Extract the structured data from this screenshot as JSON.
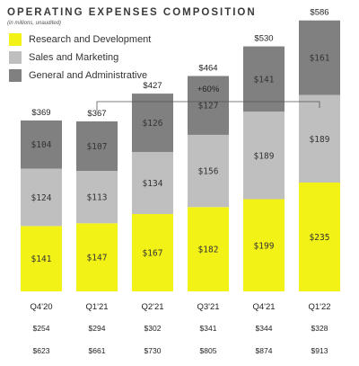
{
  "header": {
    "title": "OPERATING EXPENSES COMPOSITION",
    "subtitle": "(in millions, unaudited)"
  },
  "colors": {
    "rd": "#f2f216",
    "sm": "#bfbfbf",
    "ga": "#808080"
  },
  "growth_label": "+60%",
  "chart_data": {
    "type": "bar",
    "stacked": true,
    "title": "OPERATING EXPENSES COMPOSITION",
    "subtitle": "(in millions, unaudited)",
    "categories": [
      "Q4'20",
      "Q1'21",
      "Q2'21",
      "Q3'21",
      "Q4'21",
      "Q1'22"
    ],
    "series": [
      {
        "name": "Research and Development",
        "values": [
          141,
          147,
          167,
          182,
          199,
          235
        ]
      },
      {
        "name": "Sales and Marketing",
        "values": [
          124,
          113,
          134,
          156,
          189,
          189
        ]
      },
      {
        "name": "General and Administrative",
        "values": [
          104,
          107,
          126,
          127,
          141,
          161
        ]
      }
    ],
    "totals": [
      "$369",
      "$367",
      "$427",
      "$464",
      "$530",
      "$586"
    ],
    "value_labels": {
      "rd": [
        "$141",
        "$147",
        "$167",
        "$182",
        "$199",
        "$235"
      ],
      "sm": [
        "$124",
        "$113",
        "$134",
        "$156",
        "$189",
        "$189"
      ],
      "ga": [
        "$104",
        "$107",
        "$126",
        "$127",
        "$141",
        "$161"
      ]
    },
    "extra_rows": [
      [
        "$254",
        "$294",
        "$302",
        "$341",
        "$344",
        "$328"
      ],
      [
        "$623",
        "$661",
        "$730",
        "$805",
        "$874",
        "$913"
      ]
    ],
    "legend_position": "top-left",
    "grid": false,
    "xlabel": "",
    "ylabel": ""
  }
}
